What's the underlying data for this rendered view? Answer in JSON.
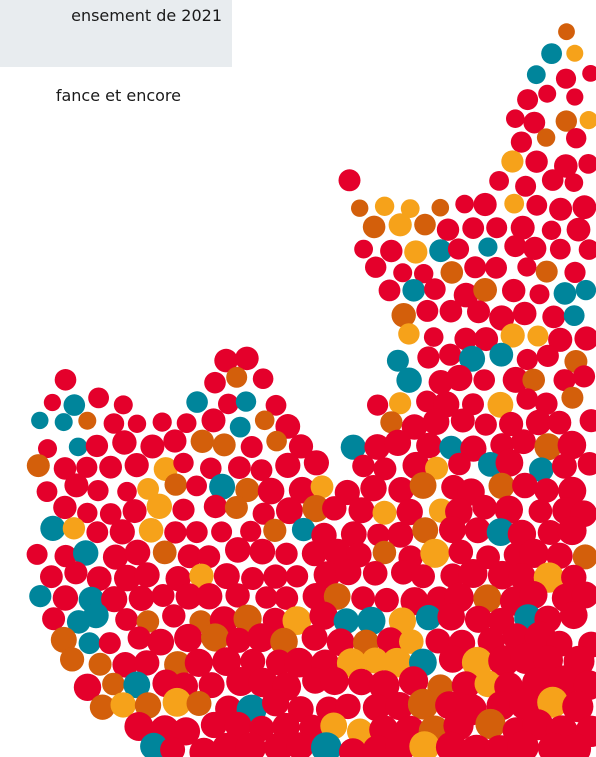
{
  "header": {
    "title": "ensement de 2021"
  },
  "body": {
    "text": "fance et encore"
  }
}
